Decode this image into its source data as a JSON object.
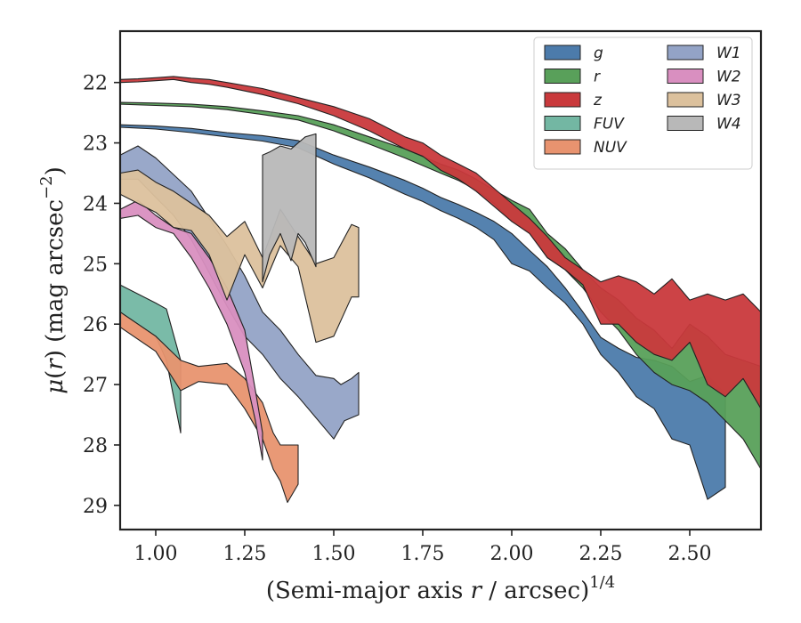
{
  "chart_data": {
    "type": "area",
    "xlabel": "(Semi-major axis r / arcsec)",
    "xlabel_parts": {
      "pre": "(Semi-major axis ",
      "var": "r",
      "post": " / arcsec)",
      "sup": "1/4"
    },
    "ylabel_parts": {
      "mu": "μ",
      "open": "(",
      "var": "r",
      "close": ") (mag arcsec",
      "sup": "−2",
      "end": ")"
    },
    "xlim": [
      0.9,
      2.7
    ],
    "ylim": [
      29.4,
      21.15
    ],
    "y_inverted": true,
    "xticks": [
      1.0,
      1.25,
      1.5,
      1.75,
      2.0,
      2.25,
      2.5
    ],
    "xtick_labels": [
      "1.00",
      "1.25",
      "1.50",
      "1.75",
      "2.00",
      "2.25",
      "2.50"
    ],
    "yticks": [
      22,
      23,
      24,
      25,
      26,
      27,
      28,
      29
    ],
    "ytick_labels": [
      "22",
      "23",
      "24",
      "25",
      "26",
      "27",
      "28",
      "29"
    ],
    "grid": false,
    "legend_position": "top-right",
    "legend_columns": 2,
    "series": [
      {
        "name": "g",
        "color": "#4c7bab",
        "upper": [
          [
            0.9,
            22.7
          ],
          [
            1.0,
            22.72
          ],
          [
            1.1,
            22.76
          ],
          [
            1.2,
            22.83
          ],
          [
            1.3,
            22.88
          ],
          [
            1.4,
            22.96
          ],
          [
            1.5,
            23.2
          ],
          [
            1.6,
            23.4
          ],
          [
            1.7,
            23.62
          ],
          [
            1.75,
            23.75
          ],
          [
            1.8,
            23.9
          ],
          [
            1.85,
            24.02
          ],
          [
            1.9,
            24.15
          ],
          [
            1.95,
            24.3
          ],
          [
            2.0,
            24.5
          ],
          [
            2.05,
            24.78
          ],
          [
            2.1,
            25.05
          ],
          [
            2.15,
            25.4
          ],
          [
            2.2,
            25.8
          ],
          [
            2.25,
            26.22
          ],
          [
            2.3,
            26.4
          ],
          [
            2.35,
            26.55
          ],
          [
            2.4,
            26.6
          ],
          [
            2.45,
            26.7
          ],
          [
            2.5,
            26.95
          ],
          [
            2.55,
            26.85
          ],
          [
            2.6,
            27.15
          ]
        ],
        "lower": [
          [
            0.9,
            22.74
          ],
          [
            1.0,
            22.77
          ],
          [
            1.1,
            22.83
          ],
          [
            1.2,
            22.9
          ],
          [
            1.3,
            22.97
          ],
          [
            1.4,
            23.08
          ],
          [
            1.5,
            23.35
          ],
          [
            1.6,
            23.58
          ],
          [
            1.7,
            23.85
          ],
          [
            1.75,
            23.97
          ],
          [
            1.8,
            24.12
          ],
          [
            1.85,
            24.25
          ],
          [
            1.9,
            24.4
          ],
          [
            1.95,
            24.6
          ],
          [
            2.0,
            25.0
          ],
          [
            2.05,
            25.12
          ],
          [
            2.1,
            25.4
          ],
          [
            2.15,
            25.65
          ],
          [
            2.2,
            26.0
          ],
          [
            2.25,
            26.5
          ],
          [
            2.3,
            26.8
          ],
          [
            2.35,
            27.2
          ],
          [
            2.4,
            27.4
          ],
          [
            2.45,
            27.9
          ],
          [
            2.5,
            28.0
          ],
          [
            2.55,
            28.9
          ],
          [
            2.6,
            28.7
          ]
        ]
      },
      {
        "name": "r",
        "color": "#59a05a",
        "upper": [
          [
            0.9,
            22.33
          ],
          [
            1.0,
            22.34
          ],
          [
            1.1,
            22.36
          ],
          [
            1.2,
            22.4
          ],
          [
            1.3,
            22.47
          ],
          [
            1.4,
            22.55
          ],
          [
            1.5,
            22.7
          ],
          [
            1.6,
            22.9
          ],
          [
            1.7,
            23.1
          ],
          [
            1.8,
            23.35
          ],
          [
            1.85,
            23.45
          ],
          [
            1.9,
            23.6
          ],
          [
            1.95,
            23.78
          ],
          [
            2.0,
            23.95
          ],
          [
            2.05,
            24.1
          ],
          [
            2.1,
            24.5
          ],
          [
            2.15,
            24.75
          ],
          [
            2.2,
            25.1
          ],
          [
            2.25,
            25.4
          ],
          [
            2.3,
            25.6
          ],
          [
            2.35,
            25.9
          ],
          [
            2.4,
            26.1
          ],
          [
            2.45,
            26.4
          ],
          [
            2.5,
            26.0
          ],
          [
            2.55,
            26.2
          ],
          [
            2.6,
            26.5
          ],
          [
            2.65,
            26.6
          ],
          [
            2.7,
            26.7
          ]
        ],
        "lower": [
          [
            0.9,
            22.36
          ],
          [
            1.0,
            22.38
          ],
          [
            1.1,
            22.4
          ],
          [
            1.2,
            22.45
          ],
          [
            1.3,
            22.53
          ],
          [
            1.4,
            22.62
          ],
          [
            1.5,
            22.8
          ],
          [
            1.6,
            23.02
          ],
          [
            1.7,
            23.25
          ],
          [
            1.8,
            23.5
          ],
          [
            1.85,
            23.62
          ],
          [
            1.9,
            23.78
          ],
          [
            1.95,
            24.0
          ],
          [
            2.0,
            24.3
          ],
          [
            2.05,
            24.48
          ],
          [
            2.1,
            24.9
          ],
          [
            2.15,
            25.1
          ],
          [
            2.2,
            25.4
          ],
          [
            2.25,
            25.8
          ],
          [
            2.3,
            26.1
          ],
          [
            2.35,
            26.5
          ],
          [
            2.4,
            26.8
          ],
          [
            2.45,
            27.0
          ],
          [
            2.5,
            27.1
          ],
          [
            2.55,
            27.3
          ],
          [
            2.6,
            27.6
          ],
          [
            2.65,
            27.9
          ],
          [
            2.7,
            28.4
          ]
        ]
      },
      {
        "name": "z",
        "color": "#c9393c",
        "upper": [
          [
            0.9,
            21.95
          ],
          [
            0.95,
            21.94
          ],
          [
            1.0,
            21.92
          ],
          [
            1.05,
            21.9
          ],
          [
            1.1,
            21.93
          ],
          [
            1.15,
            21.95
          ],
          [
            1.2,
            22.0
          ],
          [
            1.3,
            22.1
          ],
          [
            1.4,
            22.25
          ],
          [
            1.5,
            22.4
          ],
          [
            1.6,
            22.6
          ],
          [
            1.7,
            22.9
          ],
          [
            1.75,
            23.0
          ],
          [
            1.8,
            23.2
          ],
          [
            1.85,
            23.35
          ],
          [
            1.9,
            23.5
          ],
          [
            1.95,
            23.75
          ],
          [
            2.0,
            24.0
          ],
          [
            2.05,
            24.25
          ],
          [
            2.1,
            24.55
          ],
          [
            2.15,
            24.9
          ],
          [
            2.2,
            25.1
          ],
          [
            2.25,
            25.3
          ],
          [
            2.3,
            25.2
          ],
          [
            2.35,
            25.3
          ],
          [
            2.4,
            25.5
          ],
          [
            2.45,
            25.25
          ],
          [
            2.5,
            25.6
          ],
          [
            2.55,
            25.5
          ],
          [
            2.6,
            25.6
          ],
          [
            2.65,
            25.5
          ],
          [
            2.7,
            25.8
          ]
        ],
        "lower": [
          [
            0.9,
            22.0
          ],
          [
            0.95,
            21.99
          ],
          [
            1.0,
            21.97
          ],
          [
            1.05,
            21.95
          ],
          [
            1.1,
            22.0
          ],
          [
            1.15,
            22.03
          ],
          [
            1.2,
            22.08
          ],
          [
            1.3,
            22.2
          ],
          [
            1.4,
            22.35
          ],
          [
            1.5,
            22.55
          ],
          [
            1.6,
            22.8
          ],
          [
            1.7,
            23.1
          ],
          [
            1.75,
            23.22
          ],
          [
            1.8,
            23.45
          ],
          [
            1.85,
            23.6
          ],
          [
            1.9,
            23.8
          ],
          [
            1.95,
            24.05
          ],
          [
            2.0,
            24.3
          ],
          [
            2.05,
            24.5
          ],
          [
            2.1,
            24.9
          ],
          [
            2.15,
            25.1
          ],
          [
            2.2,
            25.35
          ],
          [
            2.25,
            26.0
          ],
          [
            2.3,
            26.0
          ],
          [
            2.35,
            26.3
          ],
          [
            2.4,
            26.5
          ],
          [
            2.45,
            26.6
          ],
          [
            2.5,
            26.3
          ],
          [
            2.55,
            27.0
          ],
          [
            2.6,
            27.2
          ],
          [
            2.65,
            26.9
          ],
          [
            2.7,
            27.4
          ]
        ]
      },
      {
        "name": "FUV",
        "color": "#73b7a3",
        "upper": [
          [
            0.9,
            25.35
          ],
          [
            1.0,
            25.65
          ],
          [
            1.03,
            25.75
          ],
          [
            1.07,
            26.6
          ]
        ],
        "lower": [
          [
            0.9,
            25.8
          ],
          [
            1.0,
            26.2
          ],
          [
            1.03,
            26.6
          ],
          [
            1.07,
            27.8
          ]
        ]
      },
      {
        "name": "NUV",
        "color": "#e8936f",
        "upper": [
          [
            0.9,
            25.8
          ],
          [
            1.0,
            26.2
          ],
          [
            1.07,
            26.6
          ],
          [
            1.12,
            26.7
          ],
          [
            1.2,
            26.65
          ],
          [
            1.25,
            26.9
          ],
          [
            1.3,
            27.3
          ],
          [
            1.33,
            27.8
          ],
          [
            1.35,
            28.0
          ],
          [
            1.4,
            28.0
          ]
        ],
        "lower": [
          [
            0.9,
            26.05
          ],
          [
            1.0,
            26.45
          ],
          [
            1.07,
            27.1
          ],
          [
            1.12,
            26.95
          ],
          [
            1.2,
            27.0
          ],
          [
            1.25,
            27.4
          ],
          [
            1.3,
            27.9
          ],
          [
            1.33,
            28.4
          ],
          [
            1.35,
            28.6
          ],
          [
            1.37,
            28.95
          ],
          [
            1.4,
            28.65
          ]
        ]
      },
      {
        "name": "W1",
        "color": "#93a3c6",
        "upper": [
          [
            0.9,
            23.2
          ],
          [
            0.95,
            23.05
          ],
          [
            1.0,
            23.25
          ],
          [
            1.1,
            23.8
          ],
          [
            1.15,
            24.25
          ],
          [
            1.2,
            24.7
          ],
          [
            1.25,
            25.2
          ],
          [
            1.3,
            25.8
          ],
          [
            1.35,
            26.1
          ],
          [
            1.4,
            26.5
          ],
          [
            1.45,
            26.85
          ],
          [
            1.5,
            26.9
          ],
          [
            1.52,
            27.0
          ],
          [
            1.55,
            26.9
          ],
          [
            1.57,
            26.8
          ]
        ],
        "lower": [
          [
            0.9,
            23.6
          ],
          [
            0.95,
            23.6
          ],
          [
            1.0,
            23.9
          ],
          [
            1.05,
            24.2
          ],
          [
            1.1,
            24.6
          ],
          [
            1.15,
            25.15
          ],
          [
            1.2,
            25.7
          ],
          [
            1.25,
            26.2
          ],
          [
            1.3,
            26.5
          ],
          [
            1.35,
            26.9
          ],
          [
            1.4,
            27.2
          ],
          [
            1.45,
            27.55
          ],
          [
            1.5,
            27.9
          ],
          [
            1.53,
            27.6
          ],
          [
            1.57,
            27.5
          ]
        ]
      },
      {
        "name": "W2",
        "color": "#d98fc0",
        "upper": [
          [
            0.9,
            24.1
          ],
          [
            0.95,
            23.95
          ],
          [
            1.0,
            24.2
          ],
          [
            1.05,
            24.4
          ],
          [
            1.1,
            24.5
          ],
          [
            1.15,
            24.9
          ],
          [
            1.2,
            25.4
          ],
          [
            1.25,
            26.1
          ],
          [
            1.28,
            27.1
          ],
          [
            1.3,
            27.8
          ]
        ],
        "lower": [
          [
            0.9,
            24.25
          ],
          [
            0.95,
            24.2
          ],
          [
            1.0,
            24.4
          ],
          [
            1.05,
            24.5
          ],
          [
            1.1,
            24.9
          ],
          [
            1.15,
            25.4
          ],
          [
            1.2,
            26.0
          ],
          [
            1.25,
            26.8
          ],
          [
            1.28,
            27.6
          ],
          [
            1.3,
            28.25
          ]
        ]
      },
      {
        "name": "W3",
        "color": "#dcc19d",
        "upper": [
          [
            0.9,
            23.5
          ],
          [
            0.95,
            23.45
          ],
          [
            1.0,
            23.65
          ],
          [
            1.05,
            23.8
          ],
          [
            1.1,
            24.0
          ],
          [
            1.15,
            24.2
          ],
          [
            1.2,
            24.55
          ],
          [
            1.25,
            24.3
          ],
          [
            1.3,
            24.9
          ],
          [
            1.35,
            24.1
          ],
          [
            1.4,
            24.55
          ],
          [
            1.45,
            25.0
          ],
          [
            1.5,
            24.9
          ],
          [
            1.55,
            24.35
          ],
          [
            1.57,
            24.4
          ]
        ],
        "lower": [
          [
            0.9,
            23.85
          ],
          [
            0.95,
            24.0
          ],
          [
            1.0,
            24.15
          ],
          [
            1.05,
            24.4
          ],
          [
            1.1,
            24.45
          ],
          [
            1.15,
            24.85
          ],
          [
            1.2,
            25.6
          ],
          [
            1.25,
            24.85
          ],
          [
            1.3,
            25.4
          ],
          [
            1.35,
            24.7
          ],
          [
            1.4,
            25.05
          ],
          [
            1.45,
            26.3
          ],
          [
            1.5,
            26.2
          ],
          [
            1.55,
            25.55
          ],
          [
            1.57,
            25.55
          ]
        ]
      },
      {
        "name": "W4",
        "color": "#b8b8b8",
        "upper": [
          [
            1.3,
            23.2
          ],
          [
            1.32,
            23.15
          ],
          [
            1.35,
            23.05
          ],
          [
            1.38,
            23.1
          ],
          [
            1.4,
            23.0
          ],
          [
            1.42,
            22.9
          ],
          [
            1.45,
            22.85
          ]
        ],
        "lower": [
          [
            1.3,
            25.3
          ],
          [
            1.32,
            24.85
          ],
          [
            1.35,
            24.5
          ],
          [
            1.38,
            24.95
          ],
          [
            1.4,
            24.5
          ],
          [
            1.42,
            24.65
          ],
          [
            1.45,
            25.05
          ]
        ]
      }
    ]
  }
}
